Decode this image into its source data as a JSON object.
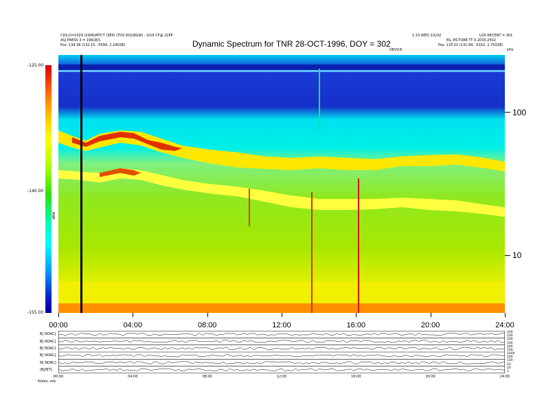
{
  "header": {
    "top_left_line1": "CDS.D=1029 (2006)MTCT (SEP) (TDS 832(BGW) - 0/19 CF@ 22PP",
    "top_left_line2": "ASJ PRESS 3 = 1991E/C",
    "top_left_line3": "Pos:  134.38 (132.15, -5594, 2.24GSE)",
    "top_right_line1": "1.10 WED 2/1/02",
    "top_right_line2": "LOS  RECENT = 301",
    "top_right_line3": "EG_PICTURE TT 0.2033.2502",
    "top_right_line4": "Pos:  133.01 (131.84, -5302, 2.75GSE)",
    "mid_label": "DEVICE",
    "unit_label": "kHz",
    "colorbar_axis_label": "dBW"
  },
  "chart_data": {
    "type": "heatmap",
    "title": "Dynamic Spectrum for TNR 28-OCT-1996, DOY = 302",
    "x_ticks": [
      "00:00",
      "04:00",
      "08:00",
      "12:00",
      "16:00",
      "20:00",
      "24:00"
    ],
    "x_range_hours": [
      0,
      24
    ],
    "y_ticks_khz": [
      "100",
      "10"
    ],
    "y_scale": "log",
    "y_range_khz": [
      5,
      250
    ],
    "colorbar_ticks": [
      "-125.00",
      "-140.00",
      "-155.00"
    ],
    "colorbar_range": [
      -155,
      -125
    ],
    "data_gap_marker_hour": 1.2,
    "lower_panels": [
      {
        "label": "B[ NOAC]",
        "right_ticks": [
          "200",
          "100"
        ]
      },
      {
        "label": "B[ NOAC]",
        "right_ticks": [
          "200",
          "100"
        ]
      },
      {
        "label": "B[ NOAC]",
        "right_ticks": [
          "200",
          "100"
        ]
      },
      {
        "label": "B[ NOAC]",
        "right_ticks": [
          "1000",
          "500"
        ]
      },
      {
        "label": "N[ NOAC]",
        "right_ticks": [
          "100",
          "10"
        ]
      },
      {
        "label": "|B|[NT]",
        "right_ticks": [
          "10",
          "5"
        ]
      }
    ],
    "lower_x_ticks": [
      "00:00",
      "04:00",
      "08:00",
      "12:00",
      "16:00",
      "20:00",
      "24:00"
    ],
    "lower_footer": "Notes:  orb"
  },
  "colors": {
    "top_band": "#1a3cd8",
    "cyan_band": "#00e8f0",
    "emission_band": "#ffe000",
    "emission_peak": "#d81010",
    "background_green": "#80e000",
    "low_band": "#ffff00"
  }
}
